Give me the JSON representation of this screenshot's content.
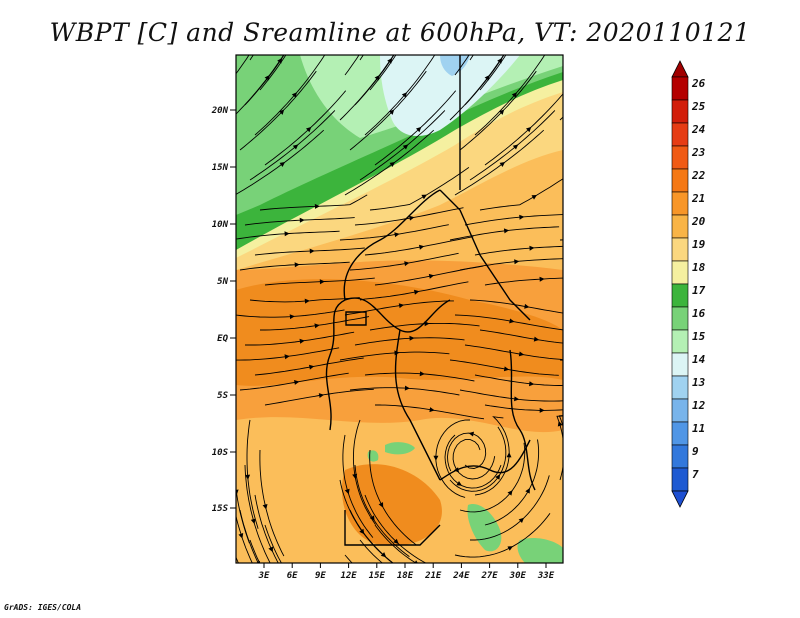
{
  "title": "WBPT [C] and Sreamline at 600hPa, VT: 2020110121",
  "credit": "GrADS: IGES/COLA",
  "lat_ticks": [
    "20N",
    "15N",
    "10N",
    "5N",
    "EQ",
    "5S",
    "10S",
    "15S"
  ],
  "lon_ticks": [
    "3E",
    "6E",
    "9E",
    "12E",
    "15E",
    "18E",
    "21E",
    "24E",
    "27E",
    "30E",
    "33E"
  ],
  "colorbar": {
    "levels": [
      "26",
      "25",
      "24",
      "23",
      "22",
      "21",
      "20",
      "19",
      "18",
      "17",
      "16",
      "15",
      "14",
      "13",
      "12",
      "11",
      "9",
      "7"
    ],
    "colors": [
      "#b40000",
      "#d21e0a",
      "#e63c14",
      "#f05a14",
      "#f57814",
      "#f89628",
      "#f9b446",
      "#fbd77f",
      "#f5f0a0",
      "#3cb43c",
      "#78d278",
      "#b4f0b4",
      "#dcf5f5",
      "#a0d2f0",
      "#78b4eb",
      "#5096e6",
      "#3278dc",
      "#1e5ad2"
    ],
    "top_arrow_color": "#a00000",
    "bottom_arrow_color": "#1e50d2"
  },
  "field_colors": {
    "deep_orange": "#f08c1e",
    "orange": "#f8a03c",
    "light_orange": "#fbbe5a",
    "yellow": "#fbd77f",
    "pale": "#f5f0a0",
    "green": "#3cb43c",
    "light_green": "#78d278",
    "pale_green": "#b4f0b4",
    "cyan": "#dcf5f5",
    "blue": "#a0d2f0"
  }
}
